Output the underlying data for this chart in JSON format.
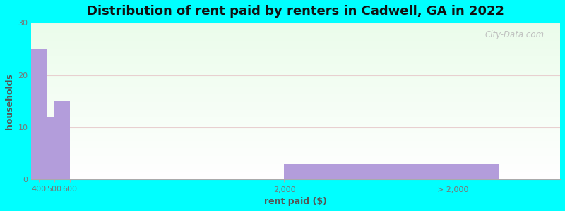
{
  "title": "Distribution of rent paid by renters in Cadwell, GA in 2022",
  "xlabel": "rent paid ($)",
  "ylabel": "households",
  "background_color": "#00FFFF",
  "bar_color": "#b39ddb",
  "bar_edge_color": "none",
  "categories": [
    "400",
    "500",
    "600",
    "2,000",
    "> 2,000"
  ],
  "bar_lefts": [
    350,
    450,
    500,
    600,
    2000
  ],
  "bar_widths": [
    100,
    50,
    100,
    1400,
    1400
  ],
  "values": [
    25,
    12,
    15,
    0,
    3
  ],
  "xlim": [
    350,
    3800
  ],
  "ylim": [
    0,
    30
  ],
  "yticks": [
    0,
    10,
    20,
    30
  ],
  "xtick_positions": [
    400,
    500,
    600,
    2000,
    3100
  ],
  "xtick_labels": [
    "400",
    "500\n600",
    "2,000",
    "> 2,000",
    ""
  ],
  "title_fontsize": 13,
  "axis_label_fontsize": 9,
  "tick_fontsize": 8,
  "watermark_text": "City-Data.com",
  "grid_color": "#dddddd",
  "plot_bg_top": "#f0fbf0",
  "plot_bg_bottom": "#ffffff"
}
